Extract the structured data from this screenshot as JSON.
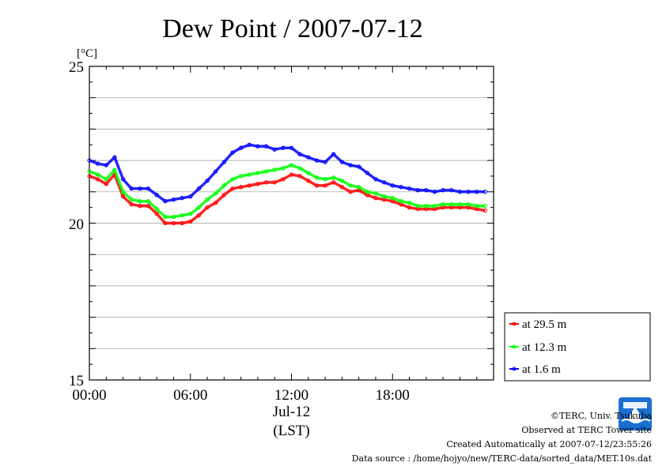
{
  "chart_data": {
    "type": "line",
    "title": "Dew Point / 2007-07-12",
    "ylabel": "[°C]",
    "xlabel": "(LST)",
    "x_date_label": "Jul-12",
    "ylim": [
      15,
      25
    ],
    "xlim_hours": [
      0,
      24
    ],
    "yticks": [
      "15",
      "20",
      "25"
    ],
    "xticks": [
      "00:00",
      "06:00",
      "12:00",
      "18:00"
    ],
    "grid": true,
    "legend_position": "lower-right outside",
    "x_hours": [
      0,
      0.5,
      1,
      1.5,
      2,
      2.5,
      3,
      3.5,
      4,
      4.5,
      5,
      5.5,
      6,
      6.5,
      7,
      7.5,
      8,
      8.5,
      9,
      9.5,
      10,
      10.5,
      11,
      11.5,
      12,
      12.5,
      13,
      13.5,
      14,
      14.5,
      15,
      15.5,
      16,
      16.5,
      17,
      17.5,
      18,
      18.5,
      19,
      19.5,
      20,
      20.5,
      21,
      21.5,
      22,
      22.5,
      23,
      23.5
    ],
    "series": [
      {
        "name": "at 29.5 m",
        "color": "#ff0000",
        "values": [
          21.5,
          21.4,
          21.25,
          21.55,
          20.85,
          20.6,
          20.55,
          20.55,
          20.3,
          20.0,
          20.0,
          20.0,
          20.05,
          20.25,
          20.5,
          20.65,
          20.9,
          21.1,
          21.15,
          21.2,
          21.25,
          21.3,
          21.3,
          21.4,
          21.55,
          21.5,
          21.35,
          21.2,
          21.2,
          21.3,
          21.15,
          21.0,
          21.05,
          20.9,
          20.8,
          20.75,
          20.7,
          20.6,
          20.5,
          20.45,
          20.45,
          20.45,
          20.5,
          20.5,
          20.5,
          20.5,
          20.45,
          20.4
        ]
      },
      {
        "name": "at 12.3 m",
        "color": "#00ff00",
        "values": [
          21.65,
          21.55,
          21.4,
          21.7,
          21.0,
          20.75,
          20.7,
          20.7,
          20.45,
          20.2,
          20.2,
          20.25,
          20.3,
          20.5,
          20.75,
          20.95,
          21.2,
          21.4,
          21.5,
          21.55,
          21.6,
          21.65,
          21.7,
          21.75,
          21.85,
          21.75,
          21.6,
          21.45,
          21.4,
          21.45,
          21.35,
          21.2,
          21.15,
          21.0,
          20.95,
          20.85,
          20.8,
          20.7,
          20.65,
          20.55,
          20.55,
          20.55,
          20.6,
          20.6,
          20.6,
          20.6,
          20.55,
          20.55
        ]
      },
      {
        "name": "at 1.6 m",
        "color": "#0000ff",
        "values": [
          22.0,
          21.9,
          21.85,
          22.1,
          21.4,
          21.1,
          21.1,
          21.1,
          20.9,
          20.7,
          20.75,
          20.8,
          20.85,
          21.1,
          21.35,
          21.65,
          21.95,
          22.25,
          22.4,
          22.5,
          22.45,
          22.45,
          22.35,
          22.4,
          22.4,
          22.2,
          22.1,
          22.0,
          21.95,
          22.2,
          21.95,
          21.85,
          21.8,
          21.6,
          21.4,
          21.3,
          21.2,
          21.15,
          21.1,
          21.05,
          21.05,
          21.0,
          21.05,
          21.05,
          21.0,
          21.0,
          21.0,
          21.0
        ]
      }
    ]
  },
  "credits": {
    "copyright": "©TERC, Univ. Tsukuba",
    "observed": "Observed at TERC Tower site",
    "created": "Created Automatically at 2007-07-12/23:55:26",
    "source": "Data source : /home/hojyo/new/TERC-data/sorted_data/MET.10s.dat"
  },
  "logo": {
    "text": "TERC"
  }
}
